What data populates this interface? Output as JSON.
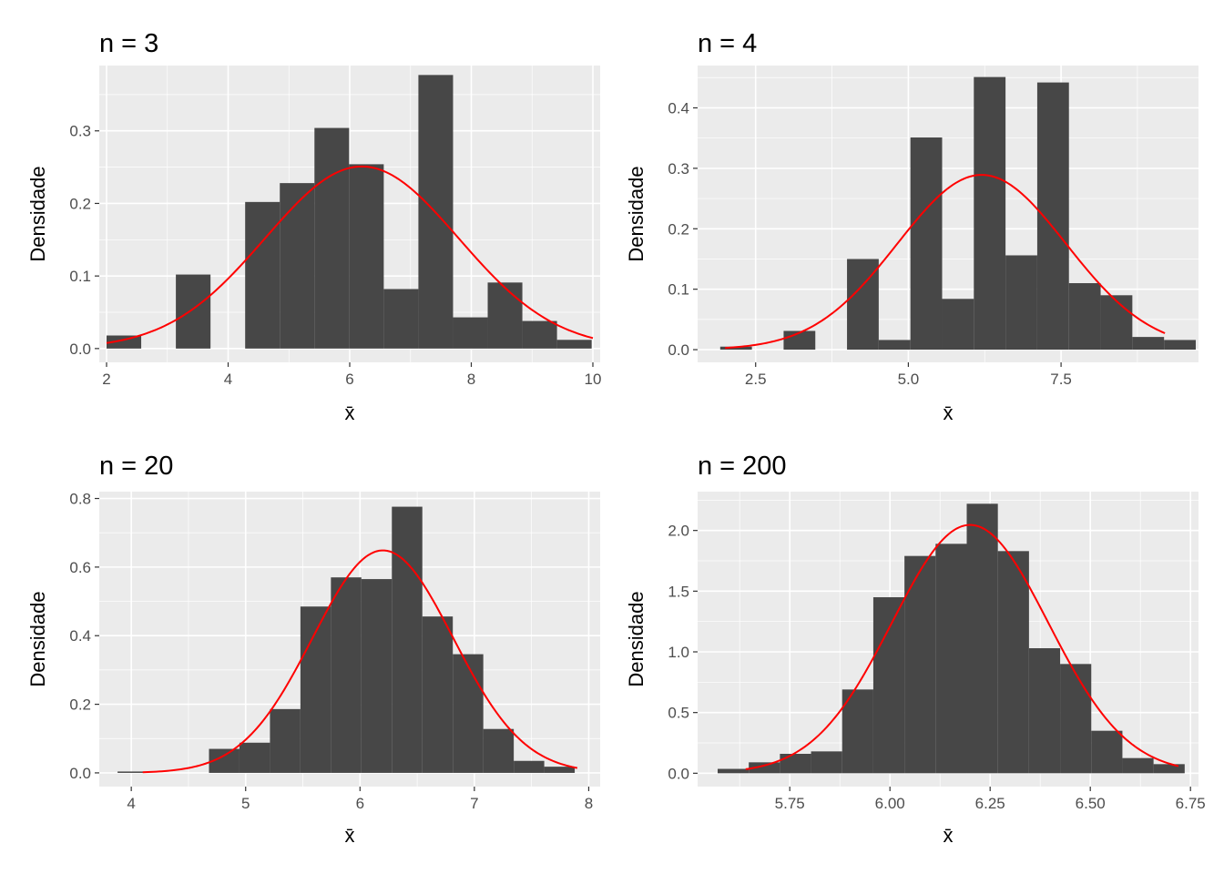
{
  "chart_data": [
    {
      "type": "bar",
      "title": "n = 3",
      "xlabel": "x̄",
      "ylabel": "Densidade",
      "xlim": [
        1.88,
        10.12
      ],
      "ylim": [
        -0.019,
        0.39
      ],
      "xticks": [
        2,
        4,
        6,
        8,
        10
      ],
      "xtick_labels": [
        "2",
        "4",
        "6",
        "8",
        "10"
      ],
      "yticks": [
        0.0,
        0.1,
        0.2,
        0.3
      ],
      "ytick_labels": [
        "0.0",
        "0.1",
        "0.2",
        "0.3"
      ],
      "grid": true,
      "histogram": {
        "bin_width": 0.57,
        "bin_start": 2.0,
        "values": [
          0.018,
          0,
          0.102,
          0,
          0.202,
          0.228,
          0.304,
          0.254,
          0.082,
          0.377,
          0.043,
          0.091,
          0.038,
          0.012
        ]
      },
      "curve": {
        "type": "normal_density",
        "mean": 6.2,
        "sd": 1.59,
        "x_range": [
          2.0,
          10.0
        ],
        "color": "#ff0000"
      }
    },
    {
      "type": "bar",
      "title": "n = 4",
      "xlabel": "x̄",
      "ylabel": "Densidade",
      "xlim": [
        1.55,
        9.75
      ],
      "ylim": [
        -0.021,
        0.47
      ],
      "xticks": [
        2.5,
        5.0,
        7.5
      ],
      "xtick_labels": [
        "2.5",
        "5.0",
        "7.5"
      ],
      "yticks": [
        0.0,
        0.1,
        0.2,
        0.3,
        0.4
      ],
      "ytick_labels": [
        "0.0",
        "0.1",
        "0.2",
        "0.3",
        "0.4"
      ],
      "grid": true,
      "histogram": {
        "bin_width": 0.519,
        "bin_start": 1.92,
        "values": [
          0.005,
          0,
          0.031,
          0,
          0.15,
          0.016,
          0.351,
          0.084,
          0.451,
          0.156,
          0.442,
          0.11,
          0.09,
          0.021,
          0.016
        ]
      },
      "curve": {
        "type": "normal_density",
        "mean": 6.2,
        "sd": 1.38,
        "x_range": [
          2.0,
          9.2
        ],
        "color": "#ff0000"
      }
    },
    {
      "type": "bar",
      "title": "n = 20",
      "xlabel": "x̄",
      "ylabel": "Densidade",
      "xlim": [
        3.72,
        8.1
      ],
      "ylim": [
        -0.04,
        0.82
      ],
      "xticks": [
        4,
        5,
        6,
        7,
        8
      ],
      "xtick_labels": [
        "4",
        "5",
        "6",
        "7",
        "8"
      ],
      "yticks": [
        0.0,
        0.2,
        0.4,
        0.6,
        0.8
      ],
      "ytick_labels": [
        "0.0",
        "0.2",
        "0.4",
        "0.6",
        "0.8"
      ],
      "grid": true,
      "histogram": {
        "bin_width": 0.2665,
        "bin_start": 3.88,
        "values": [
          0.004,
          0,
          0.0,
          0.07,
          0.088,
          0.186,
          0.485,
          0.57,
          0.565,
          0.776,
          0.456,
          0.346,
          0.128,
          0.035,
          0.018
        ]
      },
      "curve": {
        "type": "normal_density",
        "mean": 6.2,
        "sd": 0.615,
        "x_range": [
          4.1,
          7.9
        ],
        "color": "#ff0000"
      }
    },
    {
      "type": "bar",
      "title": "n = 200",
      "xlabel": "x̄",
      "ylabel": "Densidade",
      "xlim": [
        5.52,
        6.77
      ],
      "ylim": [
        -0.11,
        2.32
      ],
      "xticks": [
        5.75,
        6.0,
        6.25,
        6.5,
        6.75
      ],
      "xtick_labels": [
        "5.75",
        "6.00",
        "6.25",
        "6.50",
        "6.75"
      ],
      "yticks": [
        0.0,
        0.5,
        1.0,
        1.5,
        2.0
      ],
      "ytick_labels": [
        "0.0",
        "0.5",
        "1.0",
        "1.5",
        "2.0"
      ],
      "grid": true,
      "histogram": {
        "bin_width": 0.0777,
        "bin_start": 5.57,
        "values": [
          0.036,
          0.09,
          0.16,
          0.18,
          0.69,
          1.45,
          1.79,
          1.89,
          2.22,
          1.83,
          1.03,
          0.9,
          0.35,
          0.125,
          0.075
        ]
      },
      "curve": {
        "type": "normal_density",
        "mean": 6.2,
        "sd": 0.195,
        "x_range": [
          5.64,
          6.72
        ],
        "color": "#ff0000"
      }
    }
  ],
  "colors": {
    "panel_background": "#ebebeb",
    "major_grid": "#ffffff",
    "bar_fill": "#474747",
    "curve": "#ff0000",
    "tick_text": "#4d4d4d"
  }
}
